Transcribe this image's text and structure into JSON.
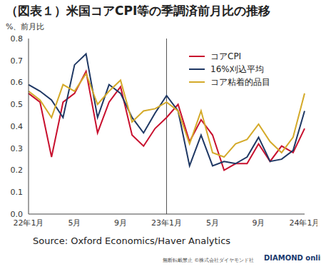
{
  "chart_data": {
    "type": "line",
    "title": "（図表１）米国コアCPI等の季調済前月比の推移",
    "y_label": "%、前月比",
    "source": "Source:  Oxford Economics/Haver Analytics",
    "credit": "無断転載禁止 ©株式会社ダイヤモンド社",
    "logo": "DIAMOND online",
    "categories": [
      "22年1月",
      null,
      null,
      null,
      "5月",
      null,
      null,
      null,
      "9月",
      null,
      null,
      null,
      "23年1月",
      null,
      null,
      null,
      "5月",
      null,
      null,
      null,
      "9月",
      null,
      null,
      null,
      "24年1月"
    ],
    "vertical_line": "23年1月",
    "series": [
      {
        "name": "コアCPI",
        "color": "#c8102e",
        "values": [
          0.55,
          0.51,
          0.26,
          0.51,
          0.55,
          0.65,
          0.37,
          0.51,
          0.58,
          0.36,
          0.31,
          0.39,
          0.44,
          0.5,
          0.33,
          0.43,
          0.36,
          0.2,
          0.23,
          0.23,
          0.32,
          0.24,
          0.31,
          0.28,
          0.39
        ]
      },
      {
        "name": "16%刈込平均",
        "color": "#1f3864",
        "values": [
          0.59,
          0.56,
          0.52,
          0.44,
          0.68,
          0.73,
          0.44,
          0.59,
          0.55,
          0.44,
          0.37,
          0.46,
          0.54,
          0.47,
          0.22,
          0.36,
          0.22,
          0.24,
          0.23,
          0.26,
          0.35,
          0.24,
          0.25,
          0.29,
          0.47
        ]
      },
      {
        "name": "コア粘着的品目",
        "color": "#d4aa2a",
        "values": [
          0.56,
          0.52,
          0.44,
          0.59,
          0.56,
          0.64,
          0.5,
          0.56,
          0.61,
          0.42,
          0.47,
          0.48,
          0.51,
          0.47,
          0.32,
          0.47,
          0.28,
          0.26,
          0.32,
          0.34,
          0.41,
          0.33,
          0.28,
          0.35,
          0.55
        ]
      }
    ],
    "ylim": [
      0,
      0.8
    ],
    "yticks": [
      {
        "value": 0,
        "label": "0.0"
      },
      0.1,
      0.2,
      0.3,
      0.4,
      0.5,
      0.6,
      0.7,
      0.8
    ],
    "grid": false,
    "legend": "upper right"
  }
}
